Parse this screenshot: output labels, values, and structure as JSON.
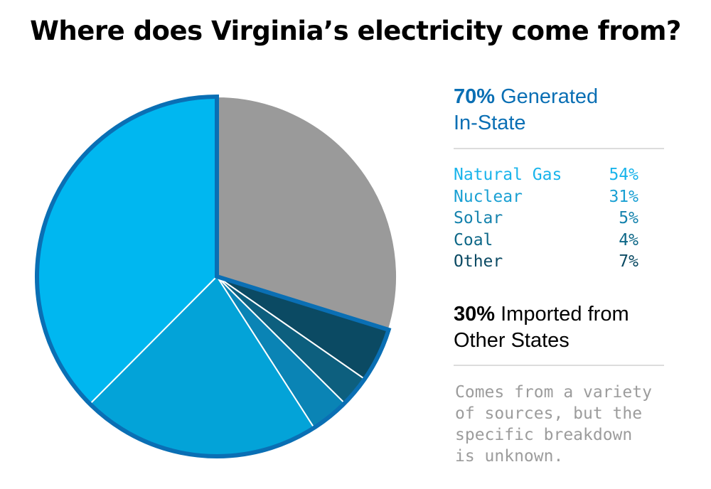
{
  "title": "Where does Virginia’s electricity come from?",
  "in_state": {
    "percent": "70%",
    "label_line1": "Generated",
    "label_line2": "In-State",
    "color": "#0A6FB4"
  },
  "breakdown": [
    {
      "label": "Natural Gas",
      "value": "54%",
      "color": "#19B4EB"
    },
    {
      "label": "Nuclear",
      "value": "31%",
      "color": "#1AA0D3"
    },
    {
      "label": "Solar",
      "value": "5%",
      "color": "#1482AD"
    },
    {
      "label": "Coal",
      "value": "4%",
      "color": "#0D6787"
    },
    {
      "label": "Other",
      "value": "7%",
      "color": "#0B4A63"
    }
  ],
  "imported": {
    "percent": "30%",
    "label_line1": "Imported from",
    "label_line2": "Other States",
    "color": "#000000"
  },
  "note": [
    "Comes from a variety",
    "of sources, but the",
    "specific breakdown",
    "is unknown."
  ],
  "chart_data": {
    "type": "pie",
    "slices": [
      {
        "label": "Imported from Other States",
        "value": 30,
        "color": "#9A9A9A"
      },
      {
        "label": "Other",
        "value": 4.9,
        "color": "#0B4A63"
      },
      {
        "label": "Coal",
        "value": 2.8,
        "color": "#0D5F7E"
      },
      {
        "label": "Solar",
        "value": 3.5,
        "color": "#0A84B5"
      },
      {
        "label": "Nuclear",
        "value": 21.7,
        "color": "#03A3D8"
      },
      {
        "label": "Natural Gas",
        "value": 37.8,
        "color": "#00B7F0"
      }
    ],
    "start_angle_deg": 0,
    "group_outline_color": "#0A6FB4"
  }
}
